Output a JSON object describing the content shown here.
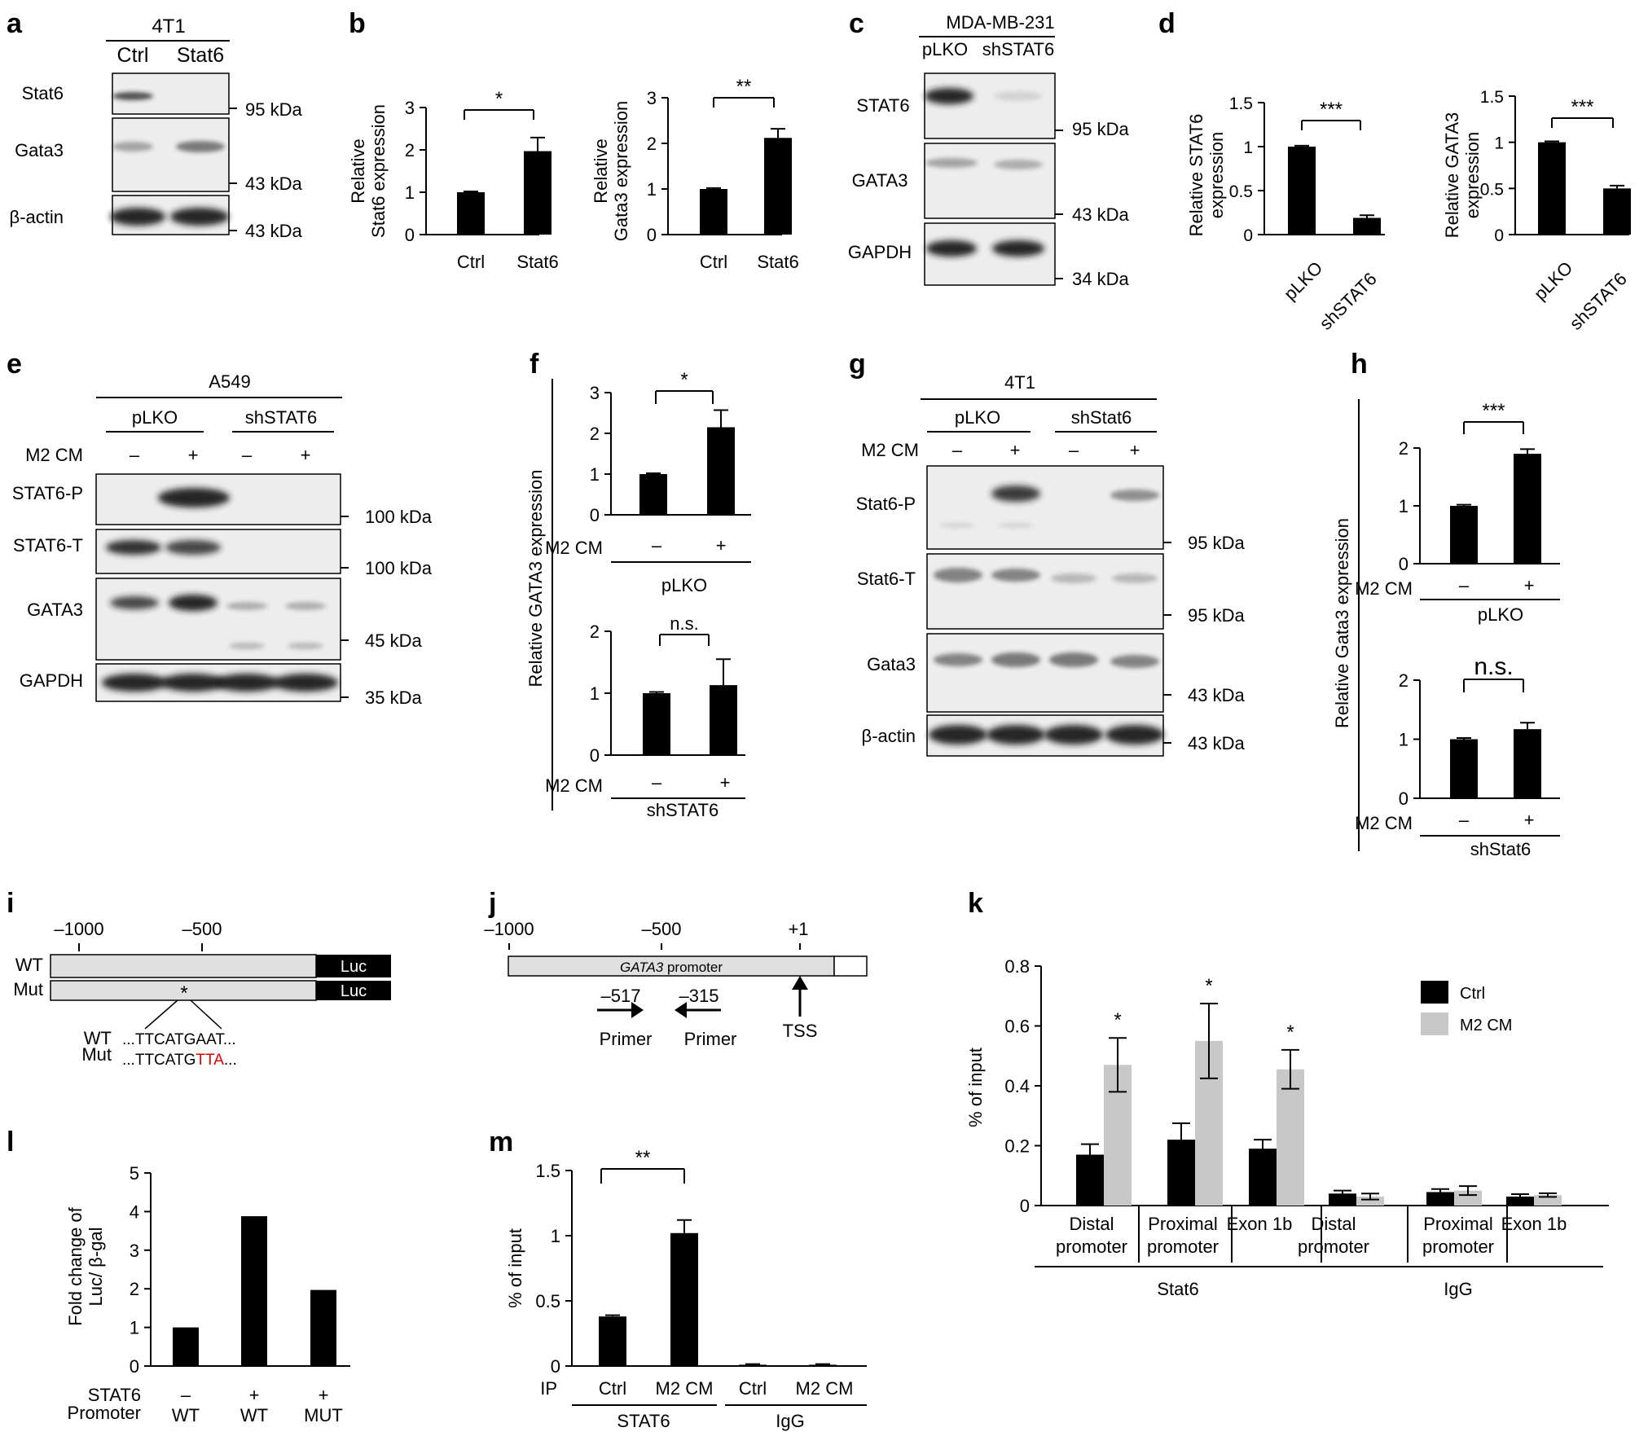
{
  "panel_letters": [
    "a",
    "b",
    "c",
    "d",
    "e",
    "f",
    "g",
    "h",
    "i",
    "j",
    "k",
    "l",
    "m"
  ],
  "colors": {
    "black_bar": "#000000",
    "gray_bar": "#c8c8c8",
    "mutation_red": "#e00000",
    "promoter_fill": "#e0e0e0",
    "blot_bg": "#ededed",
    "band": "#1a1a1a"
  },
  "star_labels": {
    "one": "*",
    "two": "**",
    "three": "***",
    "ns": "n.s."
  },
  "kda": {
    "k95": "95 kDa",
    "k43": "43 kDa",
    "k34": "34 kDa",
    "k100": "100 kDa",
    "k45": "45 kDa",
    "k35": "35 kDa"
  },
  "cm": {
    "label": "M2 CM",
    "minus": "–",
    "plus": "+"
  },
  "labels": {
    "t4t1": "4T1",
    "ctrl": "Ctrl",
    "stat6": "Stat6",
    "gata3": "Gata3",
    "bactin": "β-actin",
    "mda": "MDA-MB-231",
    "plko": "pLKO",
    "shSTAT6": "shSTAT6",
    "shStat6": "shStat6",
    "STAT6": "STAT6",
    "GATA3": "GATA3",
    "GAPDH": "GAPDH",
    "a549": "A549",
    "STAT6P": "STAT6-P",
    "STAT6T": "STAT6-T",
    "stat6P": "Stat6-P",
    "stat6T": "Stat6-T",
    "wt": "WT",
    "mut": "Mut",
    "MUT": "MUT",
    "luc": "Luc",
    "seq_wt": "...TTCATGAAT...",
    "seq_mut_a": "...TTCATG",
    "seq_mut_b": "TTA",
    "seq_mut_c": "...",
    "gata3_promoter": "GATA3",
    "promoter_word": " promoter",
    "primer": "Primer",
    "tss": "TSS",
    "ip": "IP",
    "igg": "IgG",
    "promoter_row": "Promoter",
    "m_stat6": "Stat6",
    "m_igg": "IgG"
  },
  "positions": {
    "m1000": "–1000",
    "m500": "–500",
    "m517": "–517",
    "m315": "–315",
    "p1": "+1"
  },
  "chart_data": [
    {
      "panel": "b",
      "type": "bar",
      "title": "",
      "ylabel": "Relative Stat6 expression",
      "categories": [
        "Ctrl",
        "Stat6"
      ],
      "values": [
        1.0,
        1.97
      ],
      "errors": [
        0.02,
        0.32
      ],
      "ylim": [
        0,
        3
      ],
      "yticks": [
        0,
        1,
        2,
        3
      ],
      "significance": "*"
    },
    {
      "panel": "b",
      "type": "bar",
      "title": "",
      "ylabel": "Relative Gata3 expression",
      "categories": [
        "Ctrl",
        "Stat6"
      ],
      "values": [
        1.0,
        2.12
      ],
      "errors": [
        0.02,
        0.2
      ],
      "ylim": [
        0,
        3
      ],
      "yticks": [
        0,
        1,
        2,
        3
      ],
      "significance": "**"
    },
    {
      "panel": "d",
      "type": "bar",
      "title": "",
      "ylabel": "Relative STAT6 expression",
      "categories": [
        "pLKO",
        "shSTAT6"
      ],
      "values": [
        1.0,
        0.19
      ],
      "errors": [
        0.01,
        0.03
      ],
      "ylim": [
        0,
        1.5
      ],
      "yticks": [
        "0",
        "0.5",
        "1",
        "1.5"
      ],
      "significance": "***"
    },
    {
      "panel": "d",
      "type": "bar",
      "title": "",
      "ylabel": "Relative GATA3 expression",
      "categories": [
        "pLKO",
        "shSTAT6"
      ],
      "values": [
        1.0,
        0.5
      ],
      "errors": [
        0.01,
        0.03
      ],
      "ylim": [
        0,
        1.5
      ],
      "yticks": [
        "0",
        "0.5",
        "1",
        "1.5"
      ],
      "significance": "***"
    },
    {
      "panel": "f",
      "type": "bar",
      "title": "",
      "ylabel": "Relative GATA3 expression",
      "group": "pLKO",
      "categories": [
        "–",
        "+"
      ],
      "values": [
        1.0,
        2.15
      ],
      "errors": [
        0.02,
        0.42
      ],
      "ylim": [
        0,
        3
      ],
      "yticks": [
        0,
        1,
        2,
        3
      ],
      "significance": "*"
    },
    {
      "panel": "f",
      "type": "bar",
      "title": "",
      "ylabel": "Relative GATA3 expression",
      "group": "shSTAT6",
      "categories": [
        "–",
        "+"
      ],
      "values": [
        1.0,
        1.13
      ],
      "errors": [
        0.02,
        0.42
      ],
      "ylim": [
        0,
        2
      ],
      "yticks": [
        0,
        1,
        2
      ],
      "significance": "n.s."
    },
    {
      "panel": "h",
      "type": "bar",
      "title": "",
      "ylabel": "Relative Gata3 expression",
      "group": "pLKO",
      "categories": [
        "–",
        "+"
      ],
      "values": [
        1.0,
        1.9
      ],
      "errors": [
        0.02,
        0.08
      ],
      "ylim": [
        0,
        2
      ],
      "yticks": [
        0,
        1,
        2
      ],
      "significance": "***"
    },
    {
      "panel": "h",
      "type": "bar",
      "title": "",
      "ylabel": "Relative Gata3 expression",
      "group": "shStat6",
      "categories": [
        "–",
        "+"
      ],
      "values": [
        1.0,
        1.17
      ],
      "errors": [
        0.02,
        0.11
      ],
      "ylim": [
        0,
        2
      ],
      "yticks": [
        0,
        1,
        2
      ],
      "significance": "n.s."
    },
    {
      "panel": "j",
      "type": "bar",
      "title": "",
      "ylabel": "Fold change of Luc/ β-gal",
      "rows": [
        {
          "label": "STAT6",
          "values": [
            "–",
            "+",
            "+"
          ]
        },
        {
          "label": "Promoter",
          "values": [
            "WT",
            "WT",
            "MUT"
          ]
        }
      ],
      "values": [
        1.0,
        3.88,
        1.97
      ],
      "ylim": [
        0,
        5
      ],
      "yticks": [
        0,
        1,
        2,
        3,
        4,
        5
      ]
    },
    {
      "panel": "l",
      "type": "bar",
      "title": "",
      "ylabel": "% of input",
      "xlabel": "IP",
      "categories": [
        "Ctrl",
        "M2 CM",
        "Ctrl",
        "M2 CM"
      ],
      "groups": [
        "STAT6",
        "IgG"
      ],
      "values": [
        0.38,
        1.02,
        0.01,
        0.01
      ],
      "errors": [
        0.01,
        0.1,
        0.005,
        0.005
      ],
      "ylim": [
        0,
        1.5
      ],
      "yticks": [
        "0",
        "0.5",
        "1",
        "1.5"
      ],
      "significance": "**"
    },
    {
      "panel": "m",
      "type": "bar",
      "title": "",
      "ylabel": "% of input",
      "categories": [
        "Distal promoter",
        "Proximal promoter",
        "Exon 1b",
        "Distal promoter",
        "Proximal promoter",
        "Exon 1b"
      ],
      "groups": [
        "Stat6",
        "IgG"
      ],
      "series": [
        {
          "name": "Ctrl",
          "values": [
            0.17,
            0.22,
            0.19,
            0.04,
            0.045,
            0.03
          ],
          "errors": [
            0.035,
            0.055,
            0.03,
            0.01,
            0.01,
            0.008
          ]
        },
        {
          "name": "M2 CM",
          "values": [
            0.47,
            0.55,
            0.455,
            0.03,
            0.05,
            0.035
          ],
          "errors": [
            0.09,
            0.125,
            0.065,
            0.01,
            0.015,
            0.006
          ]
        }
      ],
      "significance": [
        "*",
        "*",
        "*"
      ],
      "ylim": [
        0,
        0.8
      ],
      "yticks": [
        "0",
        "0.2",
        "0.4",
        "0.6",
        "0.8"
      ],
      "legend": "top-right"
    }
  ]
}
